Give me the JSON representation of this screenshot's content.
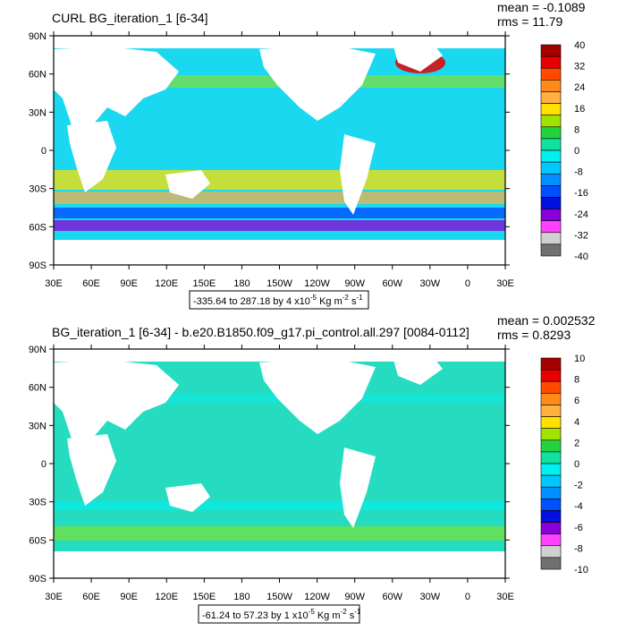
{
  "panels": [
    {
      "title": "CURL BG_iteration_1 [6-34]",
      "stats": {
        "mean": "mean = -0.1089",
        "rms": "rms = 11.79"
      },
      "range_note": "-335.64 to 287.18 by 4 x10",
      "range_exp": "-5",
      "range_unit": "Kg m",
      "range_unit_exp": "-2",
      "range_unit_tail": "s",
      "range_unit_tail_exp": "-1",
      "colorbar_labels": [
        "40",
        "32",
        "24",
        "16",
        "8",
        "0",
        "-8",
        "-16",
        "-24",
        "-32",
        "-40"
      ],
      "ocean_fill": "#19d8f0"
    },
    {
      "title": "BG_iteration_1 [6-34] - b.e20.B1850.f09_g17.pi_control.all.297 [0084-0112]",
      "stats": {
        "mean": "mean = 0.002532",
        "rms": "rms = 0.8293"
      },
      "range_note": "-61.24 to 57.23 by 1 x10",
      "range_exp": "-5",
      "range_unit": "Kg m",
      "range_unit_exp": "-2",
      "range_unit_tail": "s",
      "range_unit_tail_exp": "-1",
      "colorbar_labels": [
        "10",
        "8",
        "6",
        "4",
        "2",
        "0",
        "-2",
        "-4",
        "-6",
        "-8",
        "-10"
      ],
      "ocean_fill": "#25dcc0"
    }
  ],
  "lat_ticks": [
    "90N",
    "60N",
    "30N",
    "0",
    "30S",
    "60S",
    "90S"
  ],
  "lon_ticks": [
    "30E",
    "60E",
    "90E",
    "120E",
    "150E",
    "180",
    "150W",
    "120W",
    "90W",
    "60W",
    "30W",
    "0",
    "30E"
  ],
  "colorbar_colors": [
    "#a50000",
    "#e80000",
    "#ff4a00",
    "#ff8a1a",
    "#ffb040",
    "#ffe000",
    "#9ee400",
    "#23d23c",
    "#10e0a0",
    "#00f0f0",
    "#00c8ff",
    "#0090ff",
    "#0050ff",
    "#0010e0",
    "#8a00d8",
    "#ff40ff",
    "#d0d0d0",
    "#707070"
  ],
  "chart_data": [
    {
      "type": "heatmap",
      "title": "CURL BG_iteration_1 [6-34]",
      "stats": {
        "mean": -0.1089,
        "rms": 11.79
      },
      "data_min": -335.64,
      "data_max": 287.18,
      "contour_interval": 4,
      "units_label": "x10^-5 Kg m^-2 s^-1",
      "colorbar_levels": [
        40,
        32,
        24,
        16,
        8,
        0,
        -8,
        -16,
        -24,
        -32,
        -40
      ],
      "xlim": [
        "30E",
        "30E"
      ],
      "ylim": [
        "90S",
        "90N"
      ]
    },
    {
      "type": "heatmap",
      "title": "BG_iteration_1 [6-34] - b.e20.B1850.f09_g17.pi_control.all.297 [0084-0112]",
      "stats": {
        "mean": 0.002532,
        "rms": 0.8293
      },
      "data_min": -61.24,
      "data_max": 57.23,
      "contour_interval": 1,
      "units_label": "x10^-5 Kg m^-2 s^-1",
      "colorbar_levels": [
        10,
        8,
        6,
        4,
        2,
        0,
        -2,
        -4,
        -6,
        -8,
        -10
      ],
      "xlim": [
        "30E",
        "30E"
      ],
      "ylim": [
        "90S",
        "90N"
      ]
    }
  ]
}
